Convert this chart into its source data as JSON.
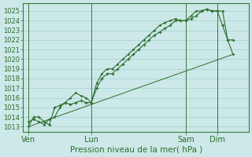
{
  "xlabel": "Pression niveau de la mer( hPa )",
  "bg_color": "#cce8e8",
  "grid_color": "#aad4d4",
  "line_color": "#2d6e2d",
  "ylim": [
    1012.5,
    1025.8
  ],
  "yticks": [
    1013,
    1014,
    1015,
    1016,
    1017,
    1018,
    1019,
    1020,
    1021,
    1022,
    1023,
    1024,
    1025
  ],
  "xtick_positions": [
    0,
    12,
    30,
    36
  ],
  "xtick_labels": [
    "Ven",
    "Lun",
    "Sam",
    "Dim"
  ],
  "vline_positions": [
    0,
    12,
    30,
    36
  ],
  "xlim": [
    -1,
    42
  ],
  "line1_x": [
    0,
    1,
    2,
    3,
    4,
    5,
    6,
    7,
    8,
    9,
    10,
    11,
    12,
    13,
    14,
    15,
    16,
    17,
    18,
    19,
    20,
    21,
    22,
    23,
    24,
    25,
    26,
    27,
    28,
    29,
    30,
    31,
    32,
    33,
    34,
    35,
    36,
    37,
    38,
    39
  ],
  "line1_y": [
    1013,
    1014,
    1014,
    1013.5,
    1013.2,
    1015,
    1015.2,
    1015.5,
    1015.3,
    1015.5,
    1015.7,
    1015.5,
    1015.5,
    1017,
    1018,
    1018.5,
    1018.5,
    1019,
    1019.5,
    1020,
    1020.5,
    1021,
    1021.5,
    1022,
    1022.5,
    1022.8,
    1023.2,
    1023.5,
    1024,
    1024,
    1024,
    1024.2,
    1024.5,
    1025,
    1025.2,
    1025,
    1025,
    1023.5,
    1022,
    1022
  ],
  "line2_x": [
    0,
    1,
    2,
    3,
    4,
    5,
    6,
    7,
    8,
    9,
    10,
    11,
    12,
    13,
    14,
    15,
    16,
    17,
    18,
    19,
    20,
    21,
    22,
    23,
    24,
    25,
    26,
    27,
    28,
    29,
    30,
    31,
    32,
    33,
    34,
    35,
    36,
    37,
    38,
    39
  ],
  "line2_y": [
    1013.5,
    1013.8,
    1013.5,
    1013.2,
    1013.8,
    1014,
    1015,
    1015.5,
    1016,
    1016.5,
    1016.2,
    1016,
    1015.5,
    1017.5,
    1018.5,
    1019,
    1019,
    1019.5,
    1020,
    1020.5,
    1021,
    1021.5,
    1022,
    1022.5,
    1023,
    1023.5,
    1023.8,
    1024,
    1024.2,
    1024,
    1024,
    1024.5,
    1025,
    1025,
    1025.2,
    1025,
    1025,
    1025,
    1022,
    1020.5
  ],
  "line3_x": [
    0,
    39
  ],
  "line3_y": [
    1013,
    1020.5
  ]
}
